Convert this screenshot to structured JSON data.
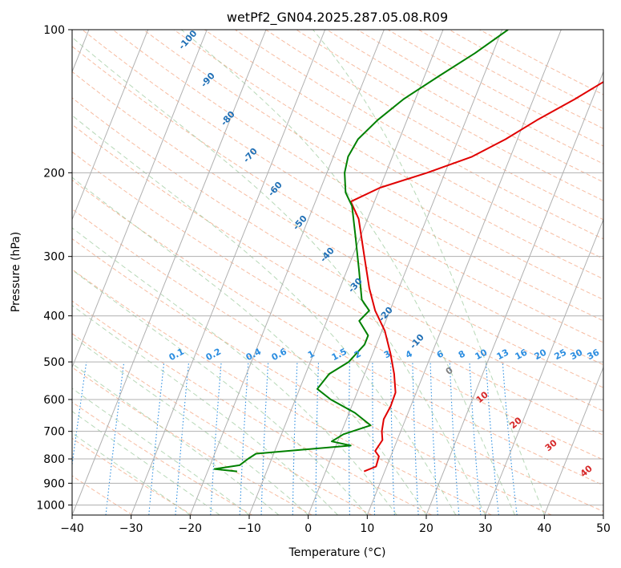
{
  "chart_data": {
    "type": "line",
    "title": "wetPf2_GN04.2025.287.05.08.R09",
    "xlabel": "Temperature (°C)",
    "ylabel": "Pressure (hPa)",
    "xlim": [
      -40,
      50
    ],
    "ylim": [
      1050,
      100
    ],
    "y_scale": "log",
    "x_ticks": [
      -40,
      -30,
      -20,
      -10,
      0,
      10,
      20,
      30,
      40,
      50
    ],
    "y_ticks": [
      100,
      200,
      300,
      400,
      500,
      600,
      700,
      800,
      900,
      1000
    ],
    "grid": true,
    "series": [
      {
        "role": "temperature",
        "color": "#e00000",
        "points": [
          {
            "t": 6.5,
            "p": 850
          },
          {
            "t": 8.2,
            "p": 830
          },
          {
            "t": 8.0,
            "p": 790
          },
          {
            "t": 7.0,
            "p": 770
          },
          {
            "t": 7.5,
            "p": 730
          },
          {
            "t": 6.8,
            "p": 700
          },
          {
            "t": 6.3,
            "p": 660
          },
          {
            "t": 6.6,
            "p": 620
          },
          {
            "t": 6.5,
            "p": 580
          },
          {
            "t": 5.0,
            "p": 530
          },
          {
            "t": 3.0,
            "p": 480
          },
          {
            "t": 0.5,
            "p": 430
          },
          {
            "t": -2.5,
            "p": 390
          },
          {
            "t": -5.0,
            "p": 350
          },
          {
            "t": -8.0,
            "p": 300
          },
          {
            "t": -11.5,
            "p": 250
          },
          {
            "t": -14.0,
            "p": 230
          },
          {
            "t": -10.0,
            "p": 215
          },
          {
            "t": -3.0,
            "p": 200
          },
          {
            "t": 3.5,
            "p": 185
          },
          {
            "t": 8.0,
            "p": 170
          },
          {
            "t": 12.0,
            "p": 155
          },
          {
            "t": 17.0,
            "p": 140
          },
          {
            "t": 22.0,
            "p": 125
          },
          {
            "t": 27.0,
            "p": 112
          },
          {
            "t": 30.0,
            "p": 100
          }
        ]
      },
      {
        "role": "dewpoint",
        "color": "#008000",
        "points": [
          {
            "t": -15.0,
            "p": 850
          },
          {
            "t": -19.0,
            "p": 840
          },
          {
            "t": -15.0,
            "p": 825
          },
          {
            "t": -14.0,
            "p": 800
          },
          {
            "t": -13.0,
            "p": 780
          },
          {
            "t": 2.5,
            "p": 750
          },
          {
            "t": -1.0,
            "p": 735
          },
          {
            "t": 0.5,
            "p": 710
          },
          {
            "t": 4.5,
            "p": 680
          },
          {
            "t": 1.0,
            "p": 640
          },
          {
            "t": -4.0,
            "p": 600
          },
          {
            "t": -7.0,
            "p": 570
          },
          {
            "t": -6.0,
            "p": 530
          },
          {
            "t": -3.5,
            "p": 500
          },
          {
            "t": -2.0,
            "p": 460
          },
          {
            "t": -2.0,
            "p": 440
          },
          {
            "t": -4.5,
            "p": 410
          },
          {
            "t": -3.5,
            "p": 390
          },
          {
            "t": -5.5,
            "p": 370
          },
          {
            "t": -8.0,
            "p": 320
          },
          {
            "t": -11.0,
            "p": 270
          },
          {
            "t": -13.5,
            "p": 235
          },
          {
            "t": -15.5,
            "p": 220
          },
          {
            "t": -17.0,
            "p": 200
          },
          {
            "t": -17.5,
            "p": 185
          },
          {
            "t": -17.0,
            "p": 170
          },
          {
            "t": -15.0,
            "p": 155
          },
          {
            "t": -12.0,
            "p": 140
          },
          {
            "t": -7.5,
            "p": 125
          },
          {
            "t": -3.0,
            "p": 112
          },
          {
            "t": 1.0,
            "p": 100
          }
        ]
      }
    ],
    "dry_adiabat_labels": [
      "-100",
      "-90",
      "-80",
      "-70",
      "-60",
      "-50",
      "-40",
      "-30",
      "-20",
      "-10"
    ],
    "mixing_ratio_labels": [
      "0.1",
      "0.2",
      "0.4",
      "0.6",
      "1",
      "1.5",
      "2",
      "3",
      "4",
      "6",
      "8",
      "10",
      "13",
      "16",
      "20",
      "25",
      "30",
      "36"
    ],
    "moist_adiabat_labels": [
      "0",
      "10",
      "20",
      "30",
      "40"
    ],
    "colors": {
      "dry_adiabat_label": "#1f6fb5",
      "mixing_ratio_label": "#2b8de0",
      "moist_adiabat_label": "#d62728",
      "zero_moist_label": "#808080",
      "grid": "#b0b0b0",
      "dry_adiabat": "#f4a582",
      "moist_adiabat": "#98c898",
      "mixing_ratio": "#2b8de0",
      "dry_curve": "#d8b98a"
    }
  }
}
